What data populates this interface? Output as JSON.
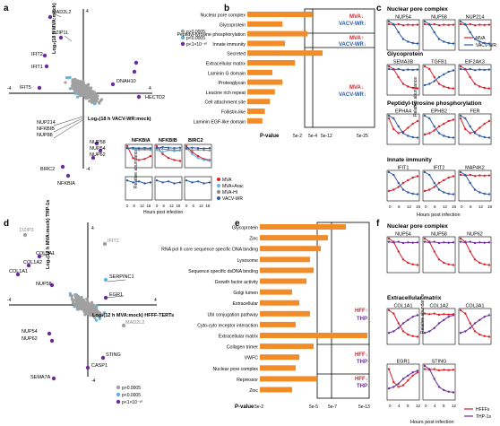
{
  "panels": {
    "a": {
      "letter": "a",
      "ylabel": "Log₂(18 h MVA:mock)",
      "xlabel": "Log₂(18 h VACV-WR:mock)",
      "ticks": {
        "y_top": "4",
        "y_bottom": "-4",
        "x_left": "-4",
        "x_right": "4"
      },
      "legend": [
        "p>0.0005",
        "p<0.0005",
        "p<1×10⁻¹⁰"
      ],
      "gene_labels": [
        "MAD2L2",
        "DZIP1L",
        "IFIT2",
        "IFIT1",
        "IFIT5",
        "DNAH10",
        "HECTD2",
        "NUP214",
        "NFKBIB",
        "NUP88",
        "NUP58",
        "NUP54",
        "NUP62",
        "BIRC2",
        "NFKBIA"
      ]
    },
    "b": {
      "letter": "b",
      "categories": [
        "Nuclear pore complex",
        "Glycoprotein",
        "Peptidyl-tyrosine phosphorylation",
        "Innate immunity",
        "Secreted",
        "Extracellular matrix",
        "Laminin G domain",
        "Proteoglycan",
        "Leucine rich repeat",
        "Cell attachment site",
        "Follistin-like",
        "Laminin EGF-like domain"
      ],
      "xlabel": "P-value",
      "ticks": [
        "5e-2",
        "5e-4",
        "5e-12",
        "5e-25"
      ],
      "annotations": [
        {
          "line1": "MVA↓",
          "line2": "VACV-WR↓"
        },
        {
          "line1": "MVA↑",
          "line2": "VACV-WR↓"
        },
        {
          "line1": "MVA↓",
          "line2": "VACV-WR↓"
        }
      ]
    },
    "c": {
      "letter": "c",
      "sections": [
        {
          "title": "Nuclear pore complex",
          "genes": [
            "NUP54",
            "NUP58",
            "NUP214"
          ]
        },
        {
          "title": "Glycoprotein",
          "genes": [
            "SEMA3B",
            "TGFB1",
            "EIF2AK3"
          ]
        },
        {
          "title": "Peptidyl-tyrosine phosphorylation",
          "genes": [
            "EPHA4",
            "EPHB2",
            "FER"
          ]
        },
        {
          "title": "Innate immunity",
          "genes": [
            "IFIT1",
            "IFIT2",
            "MAP4K2"
          ]
        }
      ],
      "ylabel": "Relative abundance",
      "xlabel": "Hours post infection",
      "xticks": [
        "0",
        "6",
        "12",
        "18"
      ],
      "legend": [
        "MVA",
        "VACV-WR"
      ]
    },
    "inset": {
      "genes": [
        "NFKBIA",
        "NFKBIB",
        "BIRC2"
      ],
      "ylabel": "Relative abundance",
      "xlabel": "Hours post infection",
      "xticks": [
        "0",
        "6",
        "12",
        "18"
      ],
      "legend": [
        "MVA",
        "MVA+Arac",
        "MVA-HI",
        "VACV-WR"
      ]
    },
    "d": {
      "letter": "d",
      "ylabel": "Log₂(12 h MVA:mock) THP-1s",
      "xlabel": "Log₂(12 h MVA:mock) HFFF-TERTs",
      "ticks": {
        "y_top": "4",
        "y_bottom": "-4",
        "x_left": "-4",
        "x_right": "4"
      },
      "legend": [
        "p>0.0005",
        "p<0.0005",
        "p<1×10⁻¹⁰"
      ],
      "gene_labels": [
        "DZIP3",
        "IFIT2",
        "COL3A1",
        "COL1A2",
        "COL1A1",
        "SERPINC1",
        "NUP58",
        "EGR1",
        "MAD2L2",
        "NUP54",
        "NUP62",
        "STING",
        "CASP1",
        "SEMA7A"
      ]
    },
    "e": {
      "letter": "e",
      "categories": [
        "Glycoprotein",
        "Zinc",
        "RNA pol II core sequence specific DNA binding",
        "Lysosome",
        "Sequence specific dsDNA binding",
        "Growth factor activity",
        "Golgi lumen",
        "Extracellular",
        "Ubl conjugation pathway",
        "Cyto-cyto receptor interaction",
        "Extracellular matrix",
        "Collagen trimer",
        "VWFC",
        "Nuclear pore complex",
        "Repressor",
        "Zinc"
      ],
      "xlabel": "P-value",
      "ticks": [
        "5e-2",
        "5e-5",
        "5e-7",
        "5e-13"
      ],
      "annotations": [
        {
          "line1": "HFF↑",
          "line2": "THP↓"
        },
        {
          "line1": "HFF↓",
          "line2": "THP↑"
        },
        {
          "line1": "HFF↓",
          "line2": "THP↓"
        }
      ]
    },
    "f": {
      "letter": "f",
      "sections": [
        {
          "title": "Nuclear pore complex",
          "genes": [
            "NUP54",
            "NUP58",
            "NUP62"
          ]
        },
        {
          "title": "Extracellular matrix",
          "genes": [
            "COL1A1",
            "COL1A2",
            "COL3A1"
          ]
        },
        {
          "title": "",
          "genes": [
            "EGR1",
            "STING",
            ""
          ]
        }
      ],
      "ylabel": "Relative abundance",
      "xlabel": "Hours post infection",
      "xticks": [
        "0",
        "4",
        "8",
        "12"
      ],
      "legend": [
        "HFFFs",
        "THP-1s"
      ]
    }
  },
  "chart_data": [
    {
      "type": "bar",
      "panel": "b",
      "categories": [
        "Nuclear pore complex",
        "Glycoprotein",
        "Peptidyl-tyrosine phosphorylation",
        "Innate immunity",
        "Secreted",
        "Extracellular matrix",
        "Laminin G domain",
        "Proteoglycan",
        "Leucine rich repeat",
        "Cell attachment site",
        "Follistin-like",
        "Laminin EGF-like domain"
      ],
      "values": [
        2.6,
        1.4,
        2.4,
        1.5,
        3.0,
        1.9,
        1.0,
        1.4,
        1.1,
        0.9,
        0.7,
        0.6
      ],
      "value_scale": "-log10 p-value (compressed axis)",
      "xlabel": "P-value",
      "colors": {
        "bar": "#f28c28"
      }
    },
    {
      "type": "bar",
      "panel": "e",
      "categories": [
        "Glycoprotein",
        "Zinc",
        "RNA pol II core sequence specific DNA binding",
        "Lysosome",
        "Sequence specific dsDNA binding",
        "Growth factor activity",
        "Golgi lumen",
        "Extracellular",
        "Ubl conjugation pathway",
        "Cyto-cyto receptor interaction",
        "Extracellular matrix",
        "Collagen trimer",
        "VWFC",
        "Nuclear pore complex",
        "Repressor",
        "Zinc"
      ],
      "values": [
        2.4,
        1.9,
        1.7,
        1.4,
        1.5,
        1.3,
        0.9,
        1.1,
        1.4,
        1.0,
        3.0,
        1.5,
        1.1,
        1.0,
        1.6,
        0.9
      ],
      "value_scale": "-log10 p-value (compressed axis)",
      "xlabel": "P-value",
      "colors": {
        "bar": "#f28c28"
      }
    }
  ],
  "colors": {
    "mva": "#d6202a",
    "vacv": "#2c5aa0",
    "arac": "#5ab4e5",
    "hi": "#888888",
    "purple": "#6a2c9a",
    "cyan": "#5ab4e5",
    "grey": "#a0a0a0",
    "bar": "#f28c28"
  }
}
